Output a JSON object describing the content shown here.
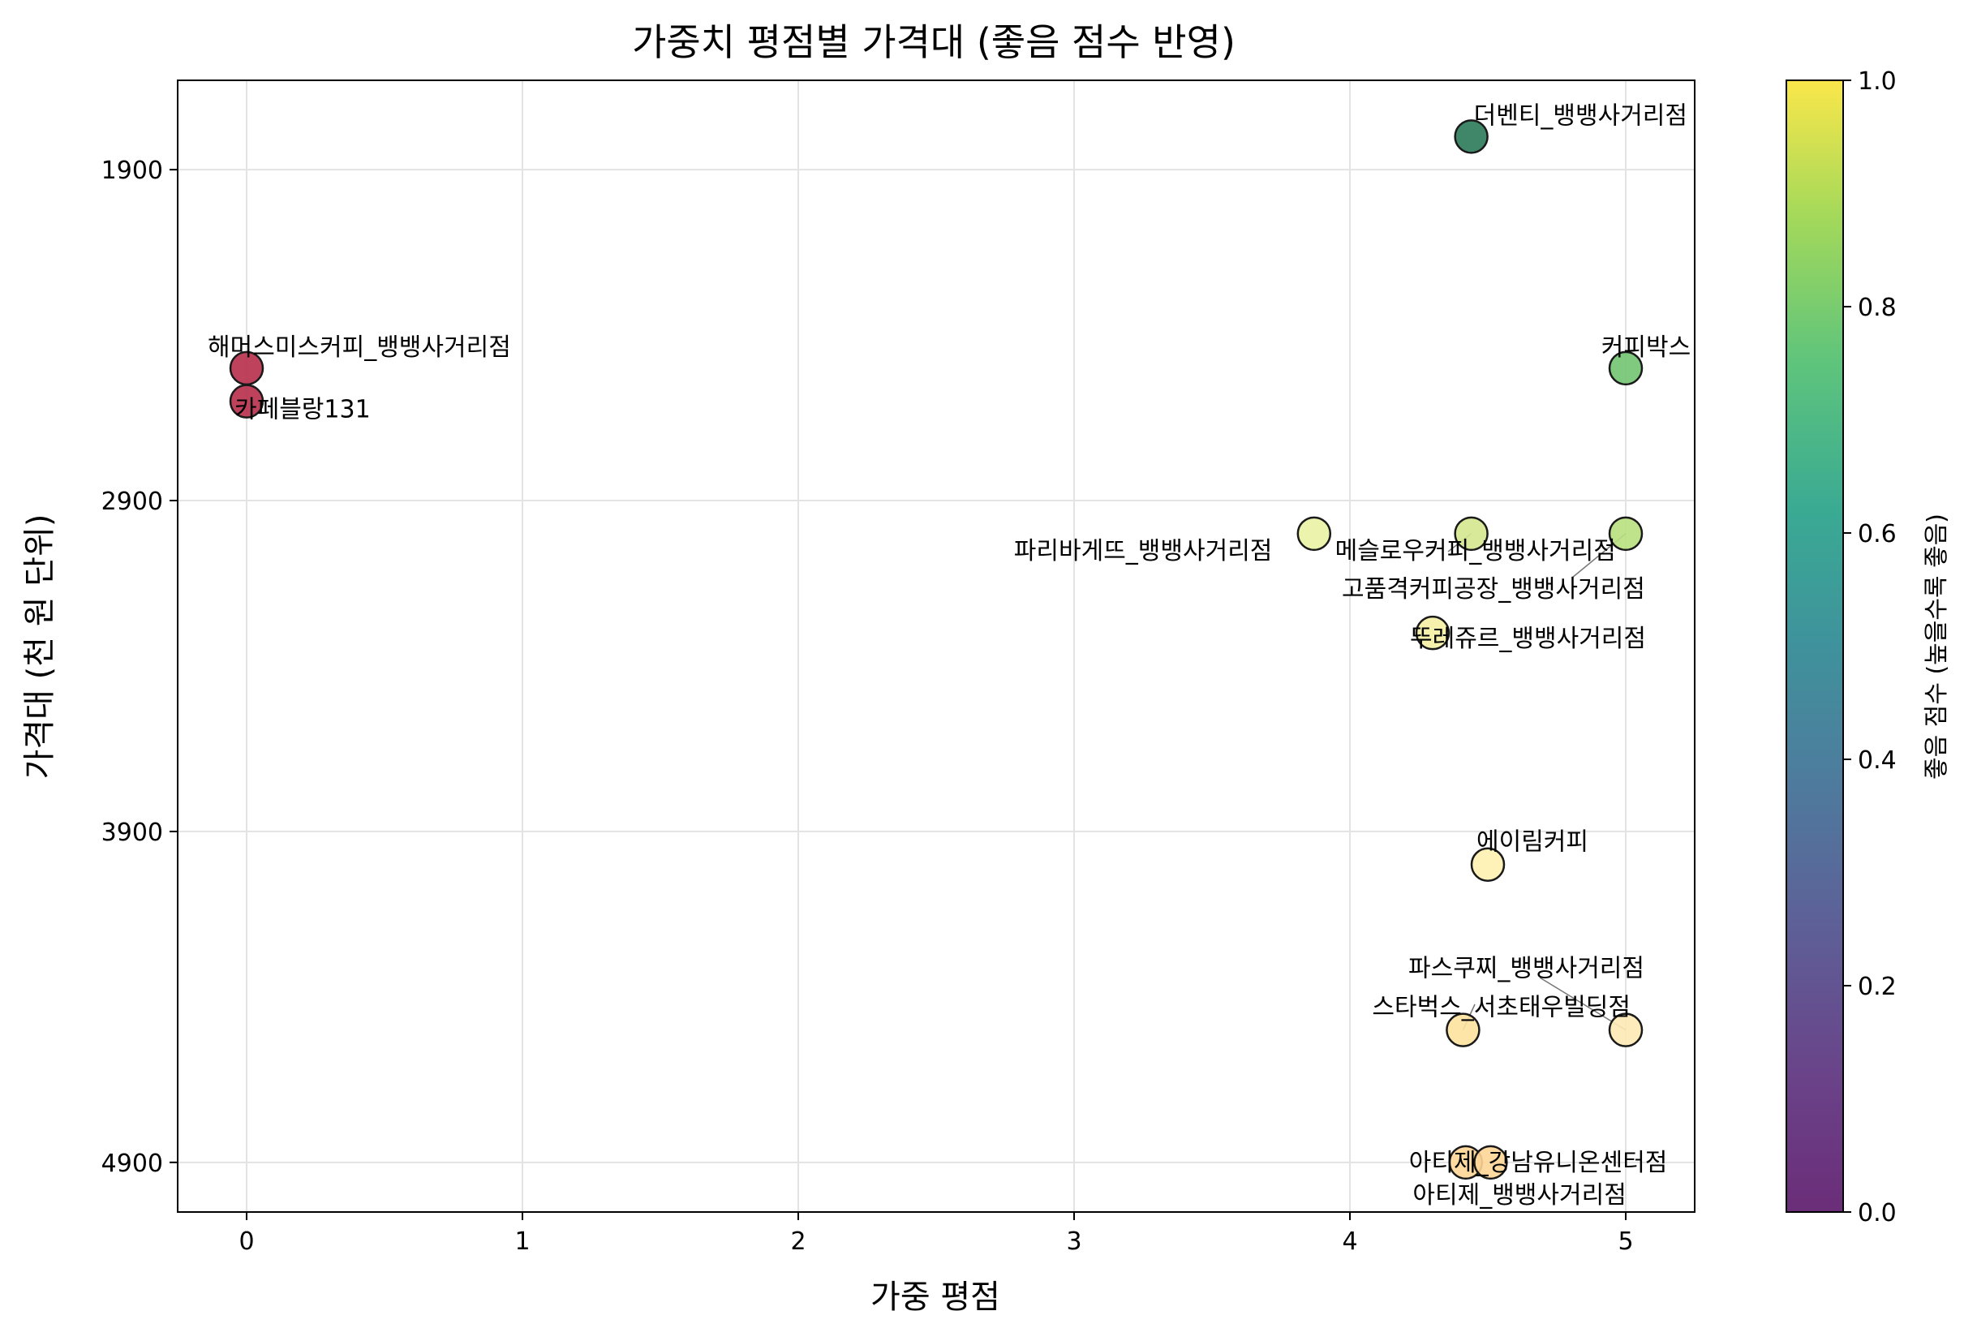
{
  "chart_data": {
    "type": "scatter",
    "title": "가중치 평점별 가격대 (좋음 점수 반영)",
    "xlabel": "가중 평점",
    "ylabel": "가격대 (천 원 단위)",
    "xlim": [
      -0.25,
      5.25
    ],
    "ylim": [
      5050,
      1630
    ],
    "y_inverted": true,
    "xticks": [
      0,
      1,
      2,
      3,
      4,
      5
    ],
    "yticks": [
      1900,
      2900,
      3900,
      4900
    ],
    "grid": true,
    "colormap": "viridis",
    "colorbar": {
      "label": "좋음 점수 (높을수록 좋음)",
      "range": [
        0.0,
        1.0
      ],
      "ticks": [
        "0.0",
        "0.2",
        "0.4",
        "0.6",
        "0.8",
        "1.0"
      ]
    },
    "points": [
      {
        "label": "더벤티_뱅뱅사거리점",
        "x": 4.44,
        "y": 1800,
        "color": "#2b7a5a"
      },
      {
        "label": "커피박스",
        "x": 5.0,
        "y": 2500,
        "color": "#72c472"
      },
      {
        "label": "해머스미스커피_뱅뱅사거리점",
        "x": 0.0,
        "y": 2500,
        "color": "#b72d4a"
      },
      {
        "label": "카페블랑131",
        "x": 0.0,
        "y": 2600,
        "color": "#b72d4a"
      },
      {
        "label": "파리바게뜨_뱅뱅사거리점",
        "x": 3.87,
        "y": 3000,
        "color": "#eaf2a4"
      },
      {
        "label": "메슬로우커피_뱅뱅사거리점",
        "x": 4.44,
        "y": 3000,
        "color": "#d4e88e"
      },
      {
        "label": "고품격커피공장_뱅뱅사거리점",
        "x": 5.0,
        "y": 3000,
        "color": "#b8e07e"
      },
      {
        "label": "뚜레쥬르_뱅뱅사거리점",
        "x": 4.3,
        "y": 3300,
        "color": "#f4f0a4"
      },
      {
        "label": "에이림커피",
        "x": 4.5,
        "y": 4000,
        "color": "#fff1b0"
      },
      {
        "label": "파스쿠찌_뱅뱅사거리점",
        "x": 5.0,
        "y": 4500,
        "color": "#fde9b4"
      },
      {
        "label": "스타벅스_서초태우빌딩점",
        "x": 4.41,
        "y": 4500,
        "color": "#fde29e"
      },
      {
        "label": "아티제_강남유니온센터점",
        "x": 4.42,
        "y": 4900,
        "color": "#fed596"
      },
      {
        "label": "아티제_뱅뱅사거리점",
        "x": 4.51,
        "y": 4900,
        "color": "#fed596"
      }
    ]
  }
}
